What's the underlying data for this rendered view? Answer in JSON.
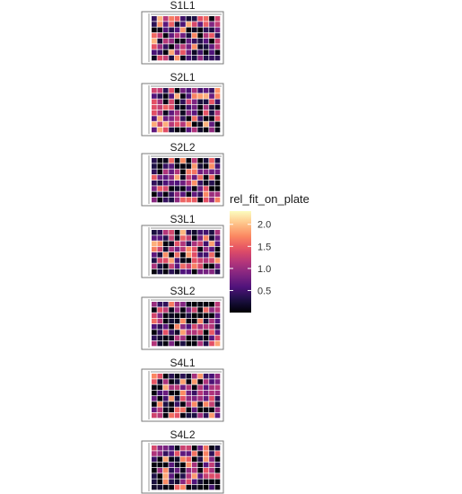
{
  "chart_data": {
    "type": "heatmap",
    "panels": [
      "S1L1",
      "S2L1",
      "S2L2",
      "S3L1",
      "S3L2",
      "S4L1",
      "S4L2"
    ],
    "plate_rows": 8,
    "plate_cols": 12,
    "colorbar": {
      "title": "rel_fit_on_plate",
      "ticks": [
        0.5,
        1.0,
        1.5,
        2.0
      ],
      "tick_labels": [
        "0.5",
        "1.0",
        "1.5",
        "2.0"
      ],
      "range": [
        0,
        2.3
      ],
      "palette": "magma"
    },
    "grid": false
  }
}
